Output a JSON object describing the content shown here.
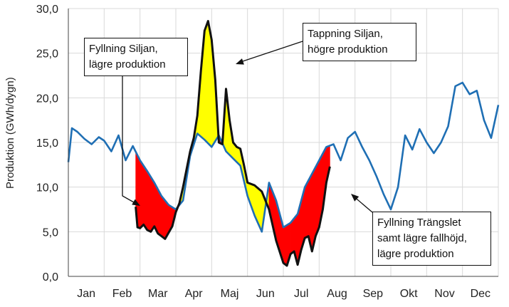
{
  "chart_data": {
    "type": "line",
    "ylabel": "Produktion (GWh/dygn)",
    "ylim": [
      0,
      30
    ],
    "yticks": [
      "0,0",
      "5,0",
      "10,0",
      "15,0",
      "20,0",
      "25,0",
      "30,0"
    ],
    "ytick_values": [
      0,
      5,
      10,
      15,
      20,
      25,
      30
    ],
    "categories": [
      "Jan",
      "Feb",
      "Mar",
      "Apr",
      "Maj",
      "Jun",
      "Jul",
      "Aug",
      "Sep",
      "Okt",
      "Nov",
      "Dec"
    ],
    "grid": true,
    "series": [
      {
        "color": "#1f6fb4",
        "x": [
          0,
          0.1,
          0.25,
          0.45,
          0.65,
          0.85,
          1.0,
          1.2,
          1.4,
          1.6,
          1.8,
          2.0,
          2.2,
          2.4,
          2.6,
          2.8,
          3.0,
          3.2,
          3.4,
          3.6,
          3.8,
          4.0,
          4.2,
          4.4,
          4.6,
          4.8,
          5.0,
          5.2,
          5.4,
          5.6,
          5.8,
          6.0,
          6.2,
          6.4,
          6.6,
          6.8,
          7.0,
          7.2,
          7.4,
          7.6,
          7.8,
          8.0,
          8.2,
          8.4,
          8.6,
          8.8,
          9.0,
          9.2,
          9.4,
          9.6,
          9.8,
          10.0,
          10.2,
          10.4,
          10.6,
          10.8,
          11.0,
          11.2,
          11.4,
          11.6,
          11.8,
          12.0
        ],
        "y": [
          12.8,
          16.6,
          16.2,
          15.4,
          14.8,
          15.6,
          15.2,
          14.0,
          15.8,
          13.0,
          14.6,
          13.0,
          11.8,
          10.5,
          9.0,
          8.0,
          7.5,
          8.5,
          13.5,
          16.0,
          15.3,
          14.5,
          15.8,
          14.0,
          13.2,
          12.4,
          9.0,
          6.8,
          5.0,
          10.5,
          8.5,
          5.5,
          6.0,
          7.0,
          10.0,
          11.5,
          13.0,
          14.5,
          14.8,
          13.0,
          15.5,
          16.2,
          14.5,
          13.0,
          11.2,
          9.2,
          7.5,
          10.0,
          15.8,
          14.2,
          16.5,
          15.0,
          13.8,
          15.0,
          16.8,
          21.3,
          21.7,
          20.4,
          20.8,
          17.5,
          15.5,
          19.2
        ]
      }
    ],
    "regulated_line": {
      "color": "#111111",
      "x": [
        1.88,
        1.93,
        2.0,
        2.1,
        2.2,
        2.3,
        2.4,
        2.5,
        2.6,
        2.7,
        2.8,
        2.9,
        3.0,
        3.1,
        3.2,
        3.3,
        3.4,
        3.5,
        3.6,
        3.7,
        3.8,
        3.9,
        4.0,
        4.1,
        4.2,
        4.3,
        4.4,
        4.5,
        4.6,
        4.7,
        4.8,
        4.9,
        5.0,
        5.2,
        5.4,
        5.6,
        5.8,
        6.0,
        6.1,
        6.2,
        6.3,
        6.4,
        6.5,
        6.6,
        6.7,
        6.8,
        6.9,
        7.0,
        7.1,
        7.2,
        7.3
      ],
      "y": [
        7.8,
        5.5,
        5.4,
        5.8,
        5.2,
        5.0,
        5.6,
        4.8,
        4.5,
        4.2,
        4.9,
        5.6,
        7.2,
        8.2,
        10.0,
        12.0,
        14.0,
        15.5,
        18.0,
        23.0,
        27.5,
        28.6,
        26.5,
        22.0,
        15.0,
        14.8,
        21.0,
        17.5,
        15.0,
        14.5,
        14.3,
        12.5,
        10.5,
        10.2,
        9.5,
        7.5,
        4.0,
        1.5,
        1.2,
        2.5,
        2.8,
        1.3,
        3.0,
        4.3,
        4.5,
        2.8,
        4.5,
        5.5,
        7.5,
        10.5,
        12.3
      ]
    },
    "annotations": [
      {
        "id": "fyllning-siljan",
        "lines": [
          "Fyllning Siljan,",
          "lägre produktion"
        ]
      },
      {
        "id": "tappning-siljan",
        "lines": [
          "Tappning  Siljan,",
          "högre produktion"
        ]
      },
      {
        "id": "fyllning-trangslet",
        "lines": [
          "Fyllning Trängslet",
          "samt lägre fallhöjd,",
          "lägre produktion"
        ]
      }
    ],
    "fill_colors": {
      "higher": "#ffff00",
      "lower": "#ff0000"
    }
  }
}
